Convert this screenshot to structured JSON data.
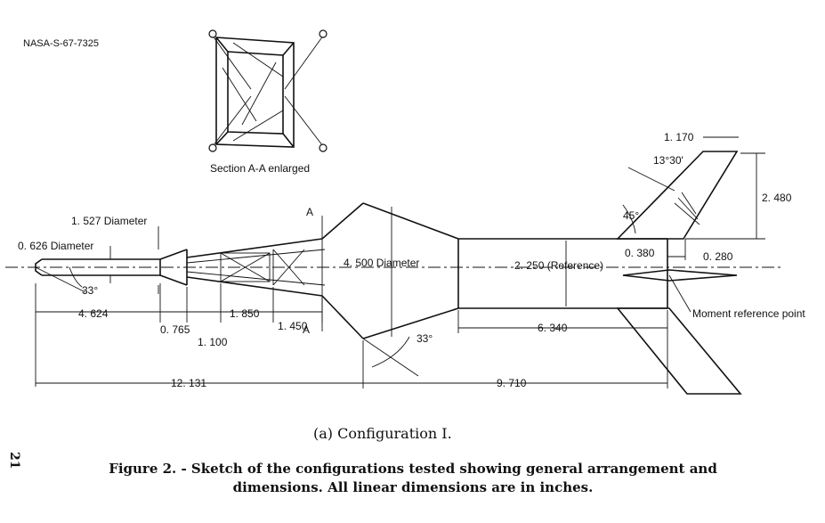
{
  "header": {
    "report_id": "NASA-S-67-7325"
  },
  "section_view": {
    "label": "Section A-A enlarged"
  },
  "section_marks": [
    "A",
    "A"
  ],
  "dimensions": {
    "nose_diameter": "0. 626 Diameter",
    "body_diameter": "1. 527 Diameter",
    "cone_diameter": "4. 500 Diameter",
    "reference": "2. 250 (Reference)",
    "nose_length": "4. 624",
    "len_0765": "0. 765",
    "len_1100": "1. 100",
    "len_1850": "1. 850",
    "len_1450": "1. 450",
    "total_forward": "12. 131",
    "total_aft": "9. 710",
    "afterbody_length": "6. 340",
    "fin_tip_chord": "1. 170",
    "fin_span": "2. 480",
    "fin_offset": "0. 380",
    "fin_thickness": "0. 280"
  },
  "angles": {
    "nose_angle": "33°",
    "cone_angle": "33°",
    "fin_sweep": "45°",
    "fin_angle": "13°30'"
  },
  "annotations": {
    "moment_reference": "Moment reference point"
  },
  "captions": {
    "subcaption": "(a)  Configuration I.",
    "figure_line1": "Figure 2. - Sketch of the configurations tested showing general arrangement and",
    "figure_line2": "dimensions.  All linear dimensions are in inches.",
    "page_number": "21"
  }
}
